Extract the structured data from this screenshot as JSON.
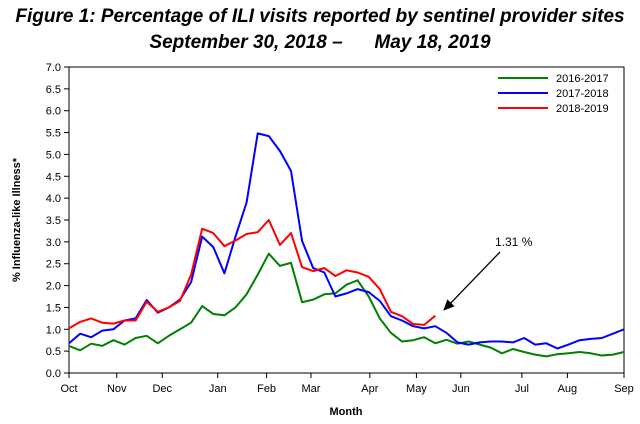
{
  "chart_data": {
    "type": "line",
    "title": "Figure 1: Percentage of ILI visits reported by sentinel provider sites",
    "subtitle": "September 30, 2018 –      May 18, 2019",
    "xlabel": "Month",
    "ylabel": "% Influenza-like Illness*",
    "ylim": [
      0,
      7
    ],
    "yticks": [
      "0.0",
      "0.5",
      "1.0",
      "1.5",
      "2.0",
      "2.5",
      "3.0",
      "3.5",
      "4.0",
      "4.5",
      "5.0",
      "5.5",
      "6.0",
      "6.5",
      "7.0"
    ],
    "xlim": [
      0,
      50
    ],
    "xticks": [
      {
        "label": "Oct",
        "x": 0
      },
      {
        "label": "Nov",
        "x": 4.3
      },
      {
        "label": "Dec",
        "x": 8.4
      },
      {
        "label": "Jan",
        "x": 13.4
      },
      {
        "label": "Feb",
        "x": 17.8
      },
      {
        "label": "Mar",
        "x": 21.8
      },
      {
        "label": "Apr",
        "x": 27.1
      },
      {
        "label": "May",
        "x": 31.3
      },
      {
        "label": "Jun",
        "x": 35.3
      },
      {
        "label": "Jul",
        "x": 40.8
      },
      {
        "label": "Aug",
        "x": 44.9
      },
      {
        "label": "Sep",
        "x": 50
      }
    ],
    "grid": false,
    "legend_position": "top-right",
    "series": [
      {
        "name": "2016-2017",
        "color": "#008000",
        "x": [
          0,
          1,
          2,
          3,
          4,
          5,
          6,
          7,
          8,
          9,
          10,
          11,
          12,
          13,
          14,
          15,
          16,
          17,
          18,
          19,
          20,
          21,
          22,
          23,
          24,
          25,
          26,
          27,
          28,
          29,
          30,
          31,
          32,
          33,
          34,
          35,
          36,
          37,
          38,
          39,
          40,
          41,
          42,
          43,
          44,
          45,
          46,
          47,
          48,
          49,
          50
        ],
        "y": [
          0.62,
          0.52,
          0.67,
          0.62,
          0.75,
          0.65,
          0.8,
          0.85,
          0.68,
          0.85,
          1.0,
          1.15,
          1.53,
          1.35,
          1.32,
          1.5,
          1.8,
          2.25,
          2.73,
          2.45,
          2.52,
          1.62,
          1.68,
          1.8,
          1.82,
          2.02,
          2.12,
          1.75,
          1.25,
          0.92,
          0.72,
          0.75,
          0.82,
          0.68,
          0.76,
          0.67,
          0.72,
          0.65,
          0.58,
          0.45,
          0.55,
          0.48,
          0.42,
          0.38,
          0.43,
          0.45,
          0.48,
          0.45,
          0.4,
          0.42,
          0.48
        ]
      },
      {
        "name": "2017-2018",
        "color": "#0000FF",
        "x": [
          0,
          1,
          2,
          3,
          4,
          5,
          6,
          7,
          8,
          9,
          10,
          11,
          12,
          13,
          14,
          15,
          16,
          17,
          18,
          19,
          20,
          21,
          22,
          23,
          24,
          25,
          26,
          27,
          28,
          29,
          30,
          31,
          32,
          33,
          34,
          35,
          36,
          37,
          38,
          39,
          40,
          41,
          42,
          43,
          44,
          45,
          46,
          47,
          48,
          49,
          50
        ],
        "y": [
          0.68,
          0.9,
          0.82,
          0.97,
          1.0,
          1.2,
          1.25,
          1.67,
          1.38,
          1.5,
          1.68,
          2.08,
          3.12,
          2.88,
          2.28,
          3.12,
          3.9,
          5.48,
          5.42,
          5.08,
          4.62,
          3.02,
          2.4,
          2.3,
          1.75,
          1.82,
          1.92,
          1.85,
          1.65,
          1.3,
          1.2,
          1.07,
          1.02,
          1.07,
          0.92,
          0.7,
          0.65,
          0.7,
          0.72,
          0.72,
          0.7,
          0.8,
          0.65,
          0.68,
          0.56,
          0.65,
          0.75,
          0.78,
          0.8,
          0.9,
          1.0
        ]
      },
      {
        "name": "2018-2019",
        "color": "#FF0000",
        "x": [
          0,
          1,
          2,
          3,
          4,
          5,
          6,
          7,
          8,
          9,
          10,
          11,
          12,
          13,
          14,
          15,
          16,
          17,
          18,
          19,
          20,
          21,
          22,
          23,
          24,
          25,
          26,
          27,
          28,
          29,
          30,
          31,
          32,
          33
        ],
        "y": [
          1.02,
          1.17,
          1.25,
          1.15,
          1.13,
          1.2,
          1.2,
          1.63,
          1.4,
          1.5,
          1.65,
          2.25,
          3.3,
          3.2,
          2.9,
          3.03,
          3.18,
          3.22,
          3.5,
          2.93,
          3.2,
          2.42,
          2.33,
          2.4,
          2.22,
          2.35,
          2.3,
          2.2,
          1.92,
          1.4,
          1.3,
          1.12,
          1.1,
          1.31
        ]
      }
    ],
    "annotations": [
      {
        "text": "1.31 %",
        "x": 33,
        "y": 1.31
      }
    ]
  }
}
